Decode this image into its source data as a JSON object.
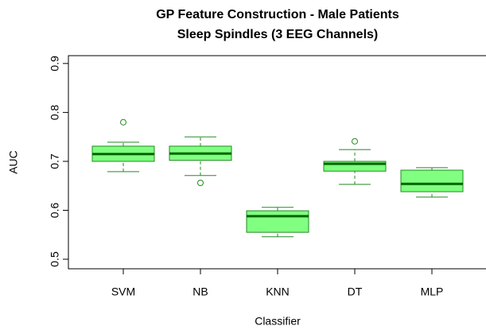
{
  "chart_data": {
    "type": "box",
    "title": "GP Feature Construction - Male Patients",
    "subtitle": "Sleep Spindles (3 EEG Channels)",
    "x_label": "Classifier",
    "y_label": "AUC",
    "categories": [
      "SVM",
      "NB",
      "KNN",
      "DT",
      "MLP"
    ],
    "boxes": [
      {
        "whislo": 0.679,
        "q1": 0.7,
        "med": 0.715,
        "q3": 0.731,
        "whishi": 0.739,
        "outliers": [
          0.78
        ]
      },
      {
        "whislo": 0.671,
        "q1": 0.702,
        "med": 0.716,
        "q3": 0.731,
        "whishi": 0.75,
        "outliers": [
          0.656
        ]
      },
      {
        "whislo": 0.546,
        "q1": 0.555,
        "med": 0.588,
        "q3": 0.599,
        "whishi": 0.606,
        "outliers": []
      },
      {
        "whislo": 0.653,
        "q1": 0.68,
        "med": 0.695,
        "q3": 0.7,
        "whishi": 0.724,
        "outliers": [
          0.741
        ]
      },
      {
        "whislo": 0.627,
        "q1": 0.638,
        "med": 0.654,
        "q3": 0.682,
        "whishi": 0.687,
        "outliers": []
      }
    ],
    "color": "#80ff80",
    "edge_color": "#228b22",
    "median_color": "#006400",
    "ylim": [
      0.4805,
      0.916
    ],
    "yticks": [
      0.5,
      0.6,
      0.7,
      0.8,
      0.9
    ]
  }
}
